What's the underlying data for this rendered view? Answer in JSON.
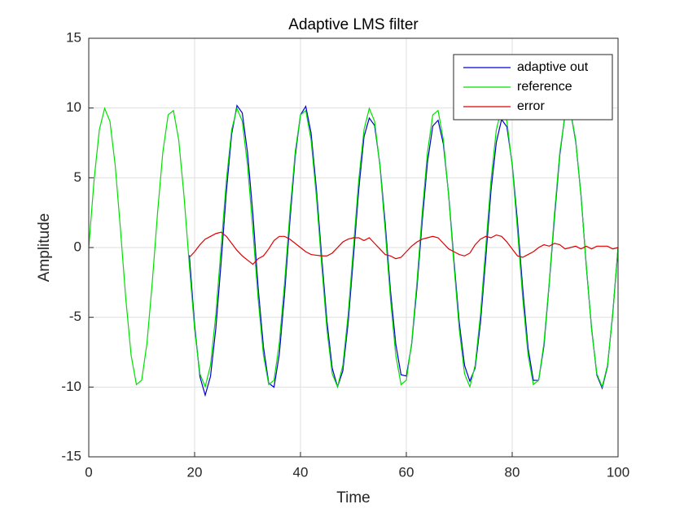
{
  "chart_data": {
    "type": "line",
    "title": "Adaptive LMS filter",
    "x_label": "Time",
    "y_label": "Amplitude",
    "x": [
      0,
      1,
      2,
      3,
      4,
      5,
      6,
      7,
      8,
      9,
      10,
      11,
      12,
      13,
      14,
      15,
      16,
      17,
      18,
      19,
      20,
      21,
      22,
      23,
      24,
      25,
      26,
      27,
      28,
      29,
      30,
      31,
      32,
      33,
      34,
      35,
      36,
      37,
      38,
      39,
      40,
      41,
      42,
      43,
      44,
      45,
      46,
      47,
      48,
      49,
      50,
      51,
      52,
      53,
      54,
      55,
      56,
      57,
      58,
      59,
      60,
      61,
      62,
      63,
      64,
      65,
      66,
      67,
      68,
      69,
      70,
      71,
      72,
      73,
      74,
      75,
      76,
      77,
      78,
      79,
      80,
      81,
      82,
      83,
      84,
      85,
      86,
      87,
      88,
      89,
      90,
      91,
      92,
      93,
      94,
      95,
      96,
      97,
      98,
      99,
      100
    ],
    "series": [
      {
        "name": "adaptive out",
        "color": "#0000d0",
        "values": [
          null,
          null,
          null,
          null,
          null,
          null,
          null,
          null,
          null,
          null,
          null,
          null,
          null,
          null,
          null,
          null,
          null,
          null,
          null,
          -0.55,
          -5.58,
          -9.25,
          -10.58,
          -9.24,
          -5.82,
          -1.1,
          4.02,
          8.14,
          10.18,
          9.65,
          6.78,
          2.45,
          -2.88,
          -7.11,
          -9.72,
          -10.01,
          -7.65,
          -3.29,
          1.89,
          6.55,
          9.51,
          10.12,
          8.21,
          4.23,
          -0.65,
          -5.28,
          -8.65,
          -9.98,
          -8.84,
          -5.42,
          -0.7,
          4.12,
          7.94,
          9.28,
          8.75,
          5.98,
          1.75,
          -3.08,
          -6.91,
          -9.12,
          -9.21,
          -6.95,
          -2.89,
          1.89,
          6.15,
          8.71,
          9.12,
          7.41,
          3.78,
          -0.95,
          -5.38,
          -8.45,
          -9.58,
          -8.64,
          -5.42,
          -0.8,
          4.12,
          7.54,
          9.18,
          8.65,
          5.98,
          1.85,
          -2.98,
          -7.21,
          -9.52,
          -9.51,
          -7.05,
          -2.59,
          2.19,
          6.65,
          9.61,
          9.82,
          7.61,
          3.78,
          -1.35,
          -5.78,
          -9.15,
          -10.08,
          -8.54,
          -4.72,
          0
        ]
      },
      {
        "name": "reference",
        "color": "#00e000",
        "values": [
          0,
          4.82,
          8.44,
          9.98,
          9.05,
          5.88,
          1.25,
          -3.68,
          -7.71,
          -9.82,
          -9.51,
          -6.85,
          -2.49,
          2.49,
          6.85,
          9.51,
          9.82,
          7.71,
          3.68,
          -1.25,
          -5.88,
          -9.05,
          -9.98,
          -8.44,
          -4.82,
          0,
          4.82,
          8.44,
          9.98,
          9.05,
          5.88,
          1.25,
          -3.68,
          -7.71,
          -9.82,
          -9.51,
          -6.85,
          -2.49,
          2.49,
          6.85,
          9.51,
          9.82,
          7.71,
          3.68,
          -1.25,
          -5.88,
          -9.05,
          -9.98,
          -8.44,
          -4.82,
          0,
          4.82,
          8.44,
          9.98,
          9.05,
          5.88,
          1.25,
          -3.68,
          -7.71,
          -9.82,
          -9.51,
          -6.85,
          -2.49,
          2.49,
          6.85,
          9.51,
          9.82,
          7.71,
          3.68,
          -1.25,
          -5.88,
          -9.05,
          -9.98,
          -8.44,
          -4.82,
          0,
          4.82,
          8.44,
          9.98,
          9.05,
          5.88,
          1.25,
          -3.68,
          -7.71,
          -9.82,
          -9.51,
          -6.85,
          -2.49,
          2.49,
          6.85,
          9.51,
          9.82,
          7.71,
          3.68,
          -1.25,
          -5.88,
          -9.05,
          -9.98,
          -8.44,
          -4.82,
          0
        ]
      },
      {
        "name": "error",
        "color": "#e00000",
        "values": [
          null,
          null,
          null,
          null,
          null,
          null,
          null,
          null,
          null,
          null,
          null,
          null,
          null,
          null,
          null,
          null,
          null,
          null,
          null,
          -0.7,
          -0.3,
          0.2,
          0.6,
          0.8,
          1.0,
          1.1,
          0.8,
          0.3,
          -0.2,
          -0.6,
          -0.9,
          -1.2,
          -0.8,
          -0.6,
          -0.1,
          0.5,
          0.8,
          0.8,
          0.6,
          0.3,
          0,
          -0.3,
          -0.5,
          -0.55,
          -0.6,
          -0.6,
          -0.4,
          0,
          0.4,
          0.6,
          0.7,
          0.7,
          0.5,
          0.7,
          0.3,
          -0.1,
          -0.5,
          -0.6,
          -0.8,
          -0.7,
          -0.3,
          0.1,
          0.4,
          0.6,
          0.7,
          0.8,
          0.7,
          0.3,
          -0.1,
          -0.3,
          -0.5,
          -0.6,
          -0.4,
          0.2,
          0.6,
          0.8,
          0.7,
          0.9,
          0.8,
          0.4,
          -0.1,
          -0.6,
          -0.7,
          -0.5,
          -0.3,
          0,
          0.2,
          0.1,
          0.3,
          0.2,
          -0.1,
          0,
          0.1,
          -0.1,
          0.1,
          -0.1,
          0.1,
          0.1,
          0.1,
          -0.1,
          0
        ]
      }
    ],
    "xlim": [
      0,
      100
    ],
    "xticks": [
      0,
      20,
      40,
      60,
      80,
      100
    ],
    "ylim": [
      -15,
      15
    ],
    "yticks": [
      -15,
      -10,
      -5,
      0,
      5,
      10,
      15
    ],
    "grid": true,
    "legend": "northeast"
  }
}
